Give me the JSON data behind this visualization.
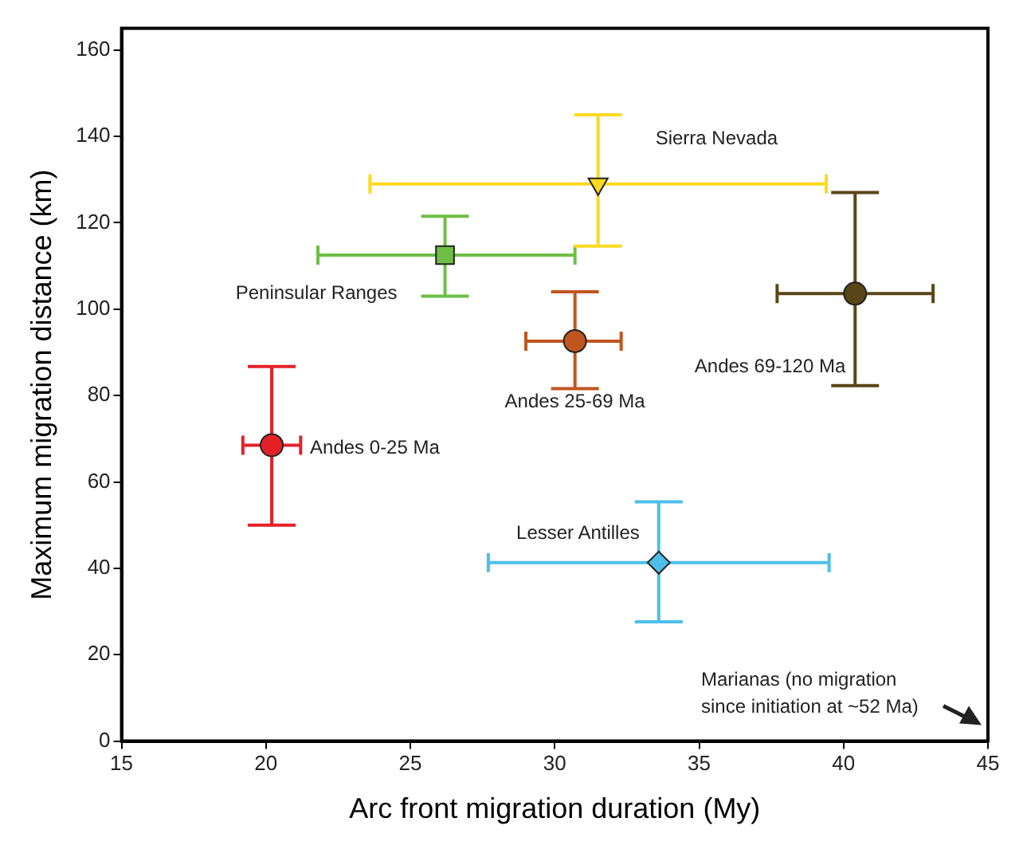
{
  "chart_data": {
    "type": "scatter",
    "xlabel": "Arc front migration duration (My)",
    "ylabel": "Maximum migration distance (km)",
    "xlim": [
      15,
      45
    ],
    "xticks": [
      15,
      20,
      25,
      30,
      35,
      40,
      45
    ],
    "ylim": [
      0,
      165
    ],
    "yticks": [
      0,
      20,
      40,
      60,
      80,
      100,
      120,
      140,
      160
    ],
    "grid": false,
    "legend": false,
    "series": [
      {
        "name": "Andes 0-25 Ma",
        "color": "#e42127",
        "marker": "circle",
        "x": [
          20.2
        ],
        "values": [
          68.5
        ],
        "errors": [
          [
            50,
            86.7
          ]
        ],
        "xerrors": [
          [
            19.2,
            21.2
          ]
        ]
      },
      {
        "name": "Peninsular Ranges",
        "color": "#6cbf44",
        "marker": "square",
        "x": [
          26.2
        ],
        "values": [
          112.5
        ],
        "errors": [
          [
            103,
            121.5
          ]
        ],
        "xerrors": [
          [
            21.8,
            30.7
          ]
        ]
      },
      {
        "name": "Andes 25-69 Ma",
        "color": "#c0561e",
        "marker": "circle",
        "x": [
          30.7
        ],
        "values": [
          92.6
        ],
        "errors": [
          [
            81.6,
            104
          ]
        ],
        "xerrors": [
          [
            29,
            32.3
          ]
        ]
      },
      {
        "name": "Sierra Nevada",
        "color": "#fcd920",
        "marker": "triangle",
        "x": [
          31.5
        ],
        "values": [
          129
        ],
        "errors": [
          [
            114.6,
            145
          ]
        ],
        "xerrors": [
          [
            23.6,
            39.4
          ]
        ]
      },
      {
        "name": "Andes 69-120 Ma",
        "color": "#5a4516",
        "marker": "circle",
        "x": [
          40.4
        ],
        "values": [
          103.6
        ],
        "errors": [
          [
            82.3,
            127
          ]
        ],
        "xerrors": [
          [
            37.7,
            43.1
          ]
        ]
      },
      {
        "name": "Lesser Antilles",
        "color": "#4cbfea",
        "marker": "diamond",
        "x": [
          33.6
        ],
        "values": [
          41.3
        ],
        "errors": [
          [
            27.6,
            55.4
          ]
        ],
        "xerrors": [
          [
            27.7,
            39.5
          ]
        ]
      }
    ],
    "annotations": [
      "Marianas (no migration\nsince initiation at ~52 Ma)"
    ]
  }
}
